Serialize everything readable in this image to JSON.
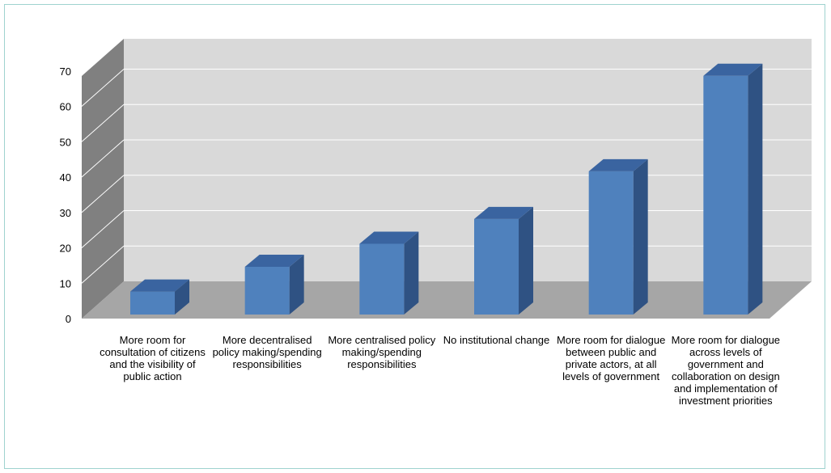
{
  "chart_data": {
    "type": "bar",
    "title": "",
    "xlabel": "",
    "ylabel": "",
    "categories": [
      "More room for consultation of citizens and the visibility of public action",
      "More decentralised policy making/spending responsibilities",
      "More centralised policy making/spending responsibilities",
      "No institutional change",
      "More room for dialogue between public and private actors, at all levels of government",
      "More room for dialogue across levels of government and collaboration on design and implementation of investment priorities"
    ],
    "values": [
      6.5,
      13.5,
      20,
      27,
      40.5,
      67.5
    ],
    "ylim": [
      0,
      70
    ],
    "yticks": [
      0,
      10,
      20,
      30,
      40,
      50,
      60,
      70
    ],
    "grid": true,
    "legend": "none",
    "colors": {
      "bar_front": "#4f81bd",
      "bar_side": "#2f5283",
      "bar_top": "#3a64a0",
      "back_wall": "#d9d9d9",
      "side_wall": "#808080",
      "floor": "#a6a6a6",
      "gridline": "#ffffff"
    }
  }
}
